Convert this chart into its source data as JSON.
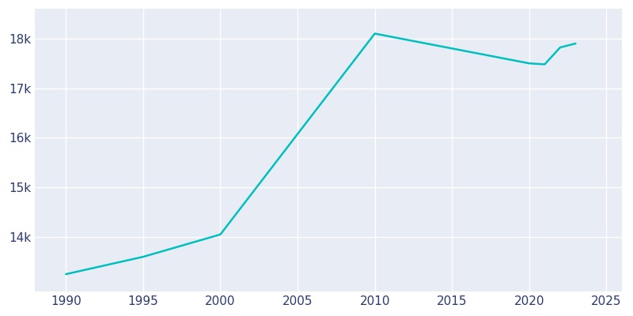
{
  "years": [
    1990,
    1995,
    2000,
    2010,
    2015,
    2020,
    2021,
    2022,
    2023
  ],
  "population": [
    13250,
    13600,
    14050,
    18100,
    17800,
    17500,
    17480,
    17820,
    17900
  ],
  "line_color": "#00bfbf",
  "bg_color": "#e8edf5",
  "outer_bg": "#ffffff",
  "grid_color": "#ffffff",
  "tick_label_color": "#2b3a6b",
  "xlim": [
    1988,
    2026
  ],
  "ylim": [
    12900,
    18600
  ],
  "yticks": [
    14000,
    15000,
    16000,
    17000,
    18000
  ],
  "xticks": [
    1990,
    1995,
    2000,
    2005,
    2010,
    2015,
    2020,
    2025
  ],
  "line_width": 1.8,
  "figsize": [
    8.0,
    4.0
  ],
  "dpi": 100
}
